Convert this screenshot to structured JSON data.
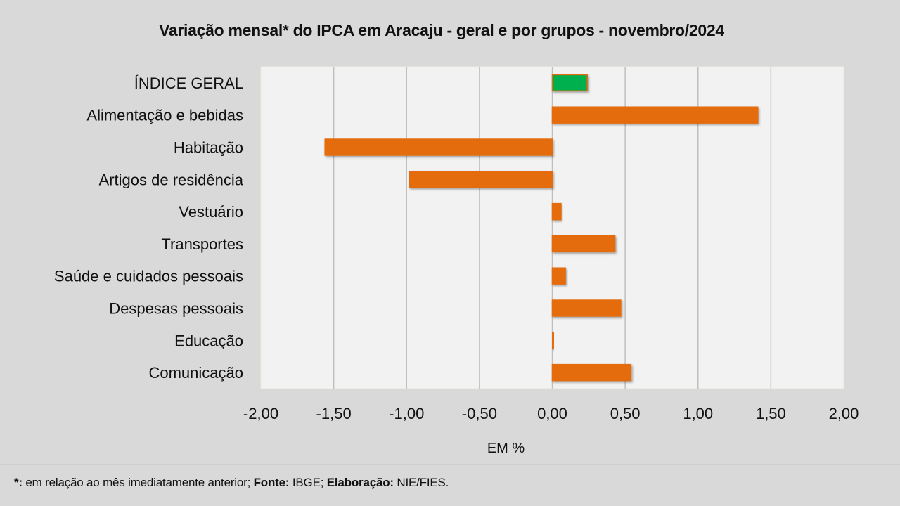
{
  "chart_data": {
    "type": "bar",
    "orientation": "horizontal",
    "title": "Variação  mensal* do IPCA em Aracaju  - geral e por grupos  - novembro/2024",
    "xlabel": "EM %",
    "ylabel": "",
    "xlim": [
      -2.0,
      2.0
    ],
    "x_ticks": [
      -2.0,
      -1.5,
      -1.0,
      -0.5,
      0.0,
      0.5,
      1.0,
      1.5,
      2.0
    ],
    "x_tick_labels": [
      "-2,00",
      "-1,50",
      "-1,00",
      "-0,50",
      "0,00",
      "0,50",
      "1,00",
      "1,50",
      "2,00"
    ],
    "grid": "vertical",
    "legend": "none",
    "categories": [
      "ÍNDICE GERAL",
      "Alimentação e bebidas",
      "Habitação",
      "Artigos de residência",
      "Vestuário",
      "Transportes",
      "Saúde e cuidados pessoais",
      "Despesas pessoais",
      "Educação",
      "Comunicação"
    ],
    "values": [
      0.24,
      1.41,
      -1.56,
      -0.98,
      0.06,
      0.43,
      0.09,
      0.47,
      0.01,
      0.54
    ],
    "colors": {
      "highlight": "#00b050",
      "default": "#e46c0a",
      "outline": "#e46c0a",
      "plot_background": "#f2f2f2",
      "gridline": "#bfbfbf",
      "page_background": "#d9d9d9"
    },
    "highlight_index": 0
  },
  "footnote": {
    "star_label": "*:",
    "star_text": " em relação ao mês imediatamente  anterior; ",
    "source_label": "Fonte:",
    "source_text": " IBGE; ",
    "credit_label": "Elaboração:",
    "credit_text": " NIE/FIES."
  }
}
